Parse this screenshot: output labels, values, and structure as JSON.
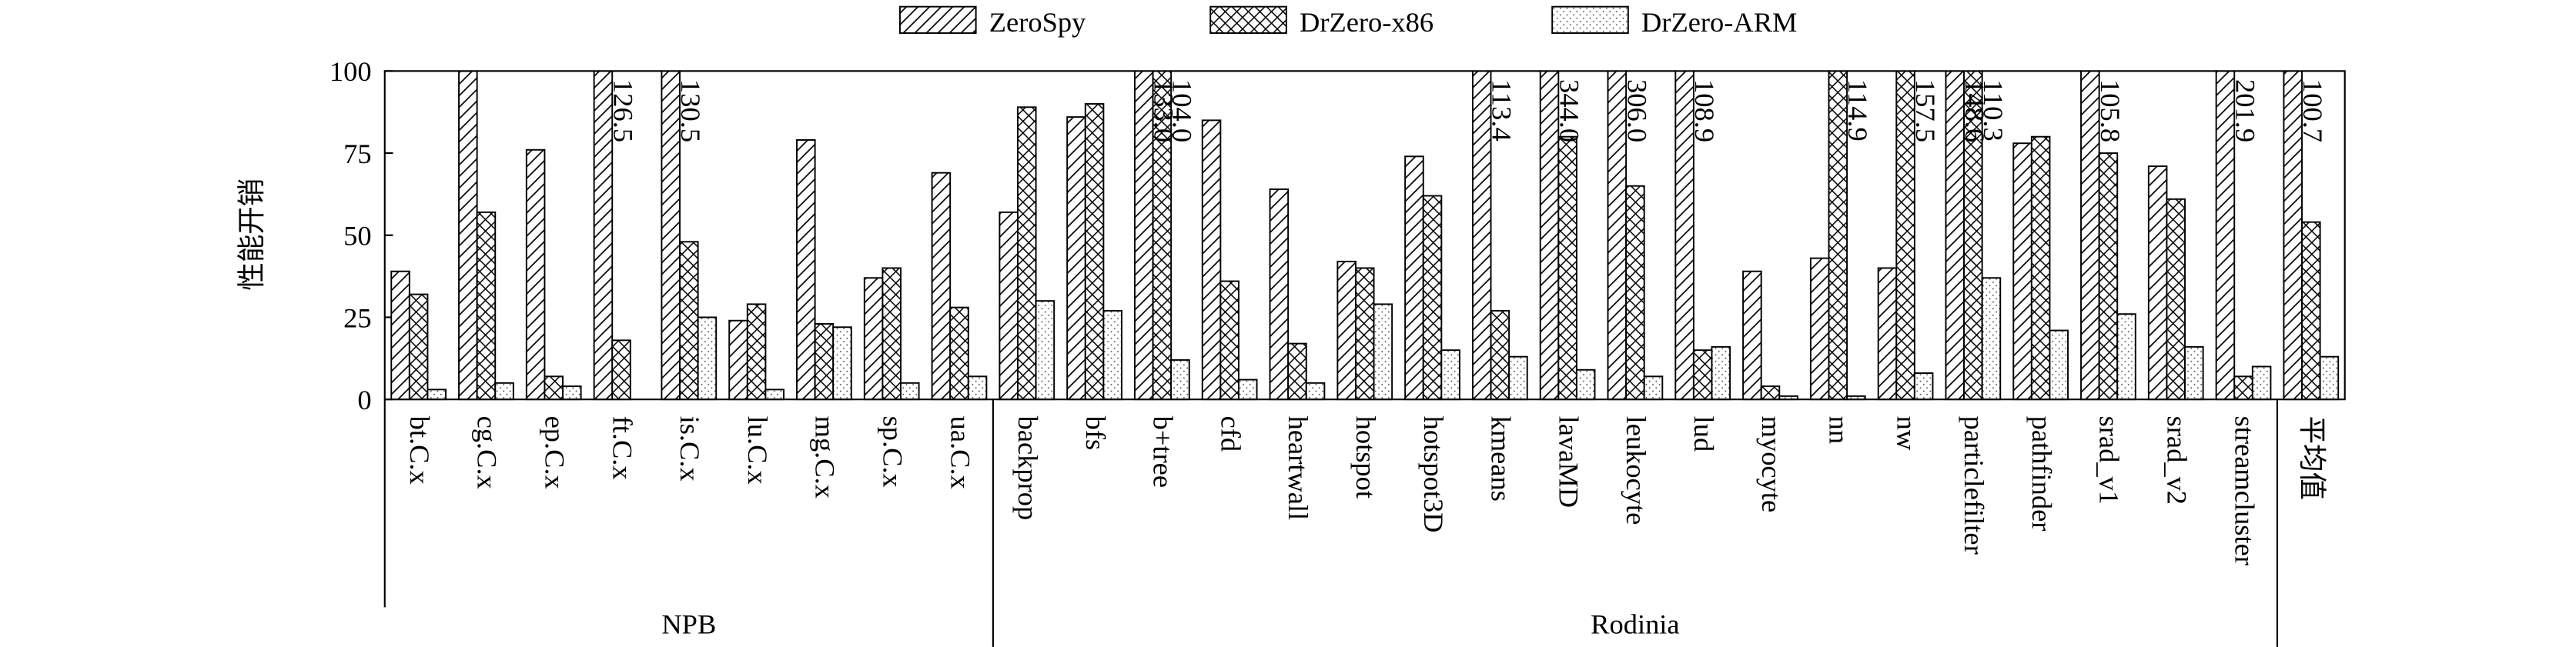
{
  "chart_data": {
    "type": "bar",
    "y_label": "性能开销",
    "categories": [
      "bt.C.x",
      "cg.C.x",
      "ep.C.x",
      "ft.C.x",
      "is.C.x",
      "lu.C.x",
      "mg.C.x",
      "sp.C.x",
      "ua.C.x",
      "backprop",
      "bfs",
      "b+tree",
      "cfd",
      "heartwall",
      "hotspot",
      "hotspot3D",
      "kmeans",
      "lavaMD",
      "leukocyte",
      "lud",
      "myocyte",
      "nn",
      "nw",
      "particlefilter",
      "pathfinder",
      "srad_v1",
      "srad_v2",
      "streamcluster",
      "平均值"
    ],
    "groups": [
      {
        "name": "NPB",
        "count": 9
      },
      {
        "name": "Rodinia",
        "count": 19
      }
    ],
    "ylim": [
      0,
      100
    ],
    "yticks": [
      0,
      25,
      50,
      75,
      100
    ],
    "legend": "top",
    "series": [
      {
        "name": "ZeroSpy",
        "color": "#000000",
        "hatch": "diagonal",
        "values": [
          39,
          100,
          76,
          126.5,
          130.5,
          24,
          79,
          37,
          69,
          57,
          86,
          133.0,
          85,
          64,
          42,
          74,
          113.4,
          344.0,
          306.0,
          108.9,
          39,
          43,
          40,
          148.6,
          78,
          105.8,
          71,
          201.9,
          100.7
        ],
        "value_labels": [
          null,
          null,
          null,
          "126.5",
          "130.5",
          null,
          null,
          null,
          null,
          null,
          null,
          "133.0",
          null,
          null,
          null,
          null,
          "113.4",
          "344.0",
          "306.0",
          "108.9",
          null,
          null,
          null,
          "148.6",
          null,
          "105.8",
          null,
          "201.9",
          "100.7"
        ]
      },
      {
        "name": "DrZero-x86",
        "color": "#000000",
        "hatch": "cross",
        "values": [
          32,
          57,
          7,
          18,
          48,
          29,
          23,
          40,
          28,
          89,
          90,
          104.0,
          36,
          17,
          40,
          62,
          27,
          80,
          65,
          15,
          4,
          114.9,
          157.5,
          110.3,
          80,
          75,
          61,
          7,
          54
        ],
        "value_labels": [
          null,
          null,
          null,
          null,
          null,
          null,
          null,
          null,
          null,
          null,
          null,
          "104.0",
          null,
          null,
          null,
          null,
          null,
          null,
          null,
          null,
          null,
          "114.9",
          "157.5",
          "110.3",
          null,
          null,
          null,
          null,
          null
        ]
      },
      {
        "name": "DrZero-ARM",
        "color": "#000000",
        "hatch": "dots",
        "values": [
          3,
          5,
          4,
          0,
          25,
          3,
          22,
          5,
          7,
          30,
          27,
          12,
          6,
          5,
          29,
          15,
          13,
          9,
          7,
          16,
          1,
          1,
          8,
          37,
          21,
          26,
          16,
          10,
          13
        ]
      }
    ]
  }
}
